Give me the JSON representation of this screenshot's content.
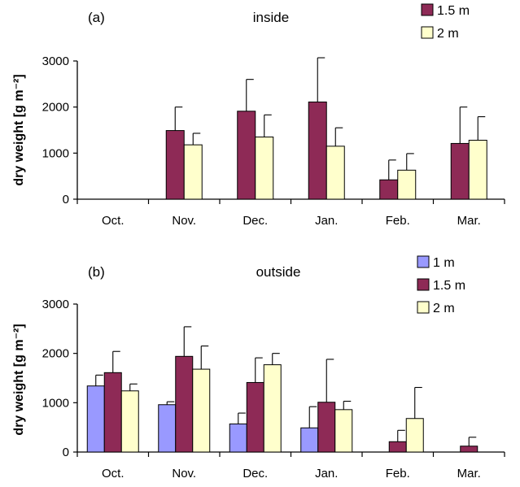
{
  "chart_data": [
    {
      "type": "bar",
      "panel_label": "(a)",
      "title": "inside",
      "ylabel": "dry weight  [g m⁻²]",
      "ylim": [
        0,
        3000
      ],
      "yticks": [
        "0",
        "1000",
        "2000",
        "3000"
      ],
      "categories": [
        "Oct.",
        "Nov.",
        "Dec.",
        "Jan.",
        "Feb.",
        "Mar."
      ],
      "legend_position": "top-right",
      "series": [
        {
          "name": "1.5 m",
          "color": "#8e2a56",
          "values": [
            null,
            1490,
            1910,
            2110,
            420,
            1210
          ],
          "errors": [
            null,
            510,
            690,
            960,
            430,
            790
          ]
        },
        {
          "name": "2 m",
          "color": "#ffffcc",
          "values": [
            null,
            1180,
            1350,
            1150,
            630,
            1280
          ],
          "errors": [
            null,
            250,
            480,
            400,
            360,
            510
          ]
        }
      ]
    },
    {
      "type": "bar",
      "panel_label": "(b)",
      "title": "outside",
      "ylabel": "dry weight [g m⁻²]",
      "ylim": [
        0,
        3000
      ],
      "yticks": [
        "0",
        "1000",
        "2000",
        "3000"
      ],
      "categories": [
        "Oct.",
        "Nov.",
        "Dec.",
        "Jan.",
        "Feb.",
        "Mar."
      ],
      "legend_position": "top-right",
      "series": [
        {
          "name": "1 m",
          "color": "#9999ff",
          "values": [
            1340,
            960,
            570,
            490,
            null,
            null
          ],
          "errors": [
            220,
            60,
            220,
            430,
            null,
            null
          ]
        },
        {
          "name": "1.5 m",
          "color": "#8e2a56",
          "values": [
            1610,
            1940,
            1410,
            1010,
            210,
            120
          ],
          "errors": [
            430,
            600,
            500,
            870,
            230,
            180
          ]
        },
        {
          "name": "2 m",
          "color": "#ffffcc",
          "values": [
            1240,
            1680,
            1770,
            860,
            680,
            null
          ],
          "errors": [
            140,
            470,
            230,
            170,
            630,
            null
          ]
        }
      ]
    }
  ]
}
